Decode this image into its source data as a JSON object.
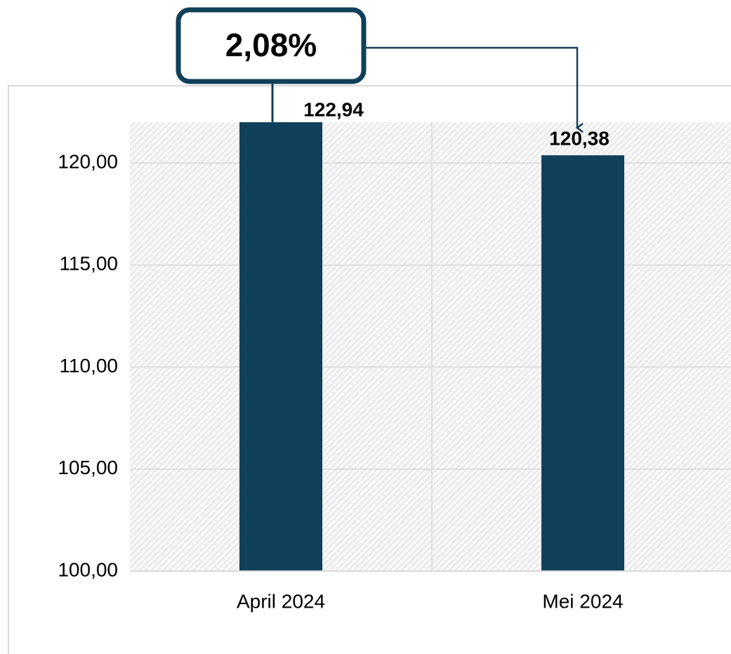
{
  "chart_data": {
    "type": "bar",
    "categories": [
      "April 2024",
      "Mei 2024"
    ],
    "values": [
      122.94,
      120.38
    ],
    "value_labels": [
      "122,94",
      "120,38"
    ],
    "color": "#10405a",
    "ylim": [
      100,
      122
    ],
    "yticks": [
      {
        "value": 100,
        "label": "100,00"
      },
      {
        "value": 105,
        "label": "105,00"
      },
      {
        "value": 110,
        "label": "110,00"
      },
      {
        "value": 115,
        "label": "115,00"
      },
      {
        "value": 120,
        "label": "120,00"
      }
    ],
    "grid": true,
    "annotation": "2,08%"
  }
}
